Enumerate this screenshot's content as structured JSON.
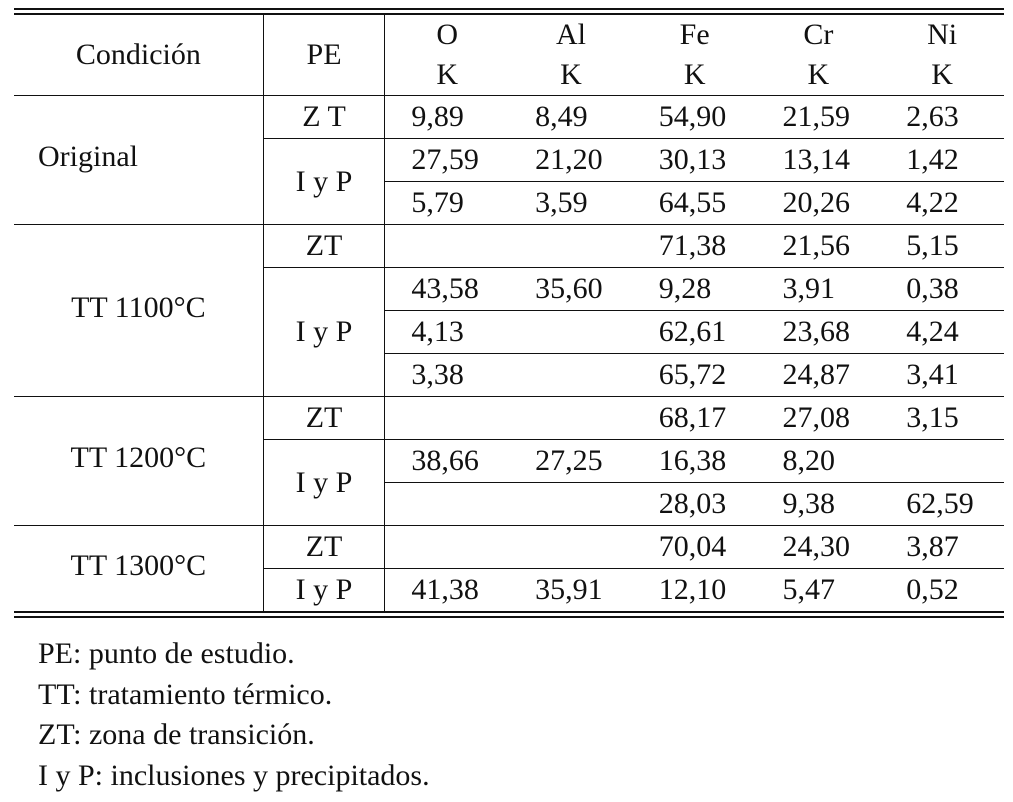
{
  "header": {
    "condition": "Condición",
    "pe": "PE",
    "elements": [
      {
        "symbol": "O",
        "unit": "K"
      },
      {
        "symbol": "Al",
        "unit": "K"
      },
      {
        "symbol": "Fe",
        "unit": "K"
      },
      {
        "symbol": "Cr",
        "unit": "K"
      },
      {
        "symbol": "Ni",
        "unit": "K"
      }
    ]
  },
  "groups": [
    {
      "condition": "Original",
      "points": [
        {
          "pe": "Z T",
          "rows": [
            [
              "9,89",
              "8,49",
              "54,90",
              "21,59",
              "2,63"
            ]
          ]
        },
        {
          "pe": "I y P",
          "rows": [
            [
              "27,59",
              "21,20",
              "30,13",
              "13,14",
              "1,42"
            ],
            [
              "5,79",
              "3,59",
              "64,55",
              "20,26",
              "4,22"
            ]
          ]
        }
      ]
    },
    {
      "condition": "TT 1100°C",
      "points": [
        {
          "pe": "ZT",
          "rows": [
            [
              null,
              null,
              "71,38",
              "21,56",
              "5,15"
            ]
          ]
        },
        {
          "pe": "I y P",
          "rows": [
            [
              "43,58",
              "35,60",
              "9,28",
              "3,91",
              "0,38"
            ],
            [
              "4,13",
              null,
              "62,61",
              "23,68",
              "4,24"
            ],
            [
              "3,38",
              null,
              "65,72",
              "24,87",
              "3,41"
            ]
          ]
        }
      ]
    },
    {
      "condition": "TT 1200°C",
      "points": [
        {
          "pe": "ZT",
          "rows": [
            [
              null,
              null,
              "68,17",
              "27,08",
              "3,15"
            ]
          ]
        },
        {
          "pe": "I y P",
          "rows": [
            [
              "38,66",
              "27,25",
              "16,38",
              "8,20",
              null
            ],
            [
              null,
              null,
              "28,03",
              "9,38",
              "62,59"
            ]
          ]
        }
      ]
    },
    {
      "condition": "TT 1300°C",
      "points": [
        {
          "pe": "ZT",
          "rows": [
            [
              null,
              null,
              "70,04",
              "24,30",
              "3,87"
            ]
          ]
        },
        {
          "pe": "I y P",
          "rows": [
            [
              "41,38",
              "35,91",
              "12,10",
              "5,47",
              "0,52"
            ]
          ]
        }
      ]
    }
  ],
  "notes": [
    "PE: punto de estudio.",
    "TT: tratamiento térmico.",
    "ZT: zona de transición.",
    "I y P: inclusiones y precipitados."
  ]
}
